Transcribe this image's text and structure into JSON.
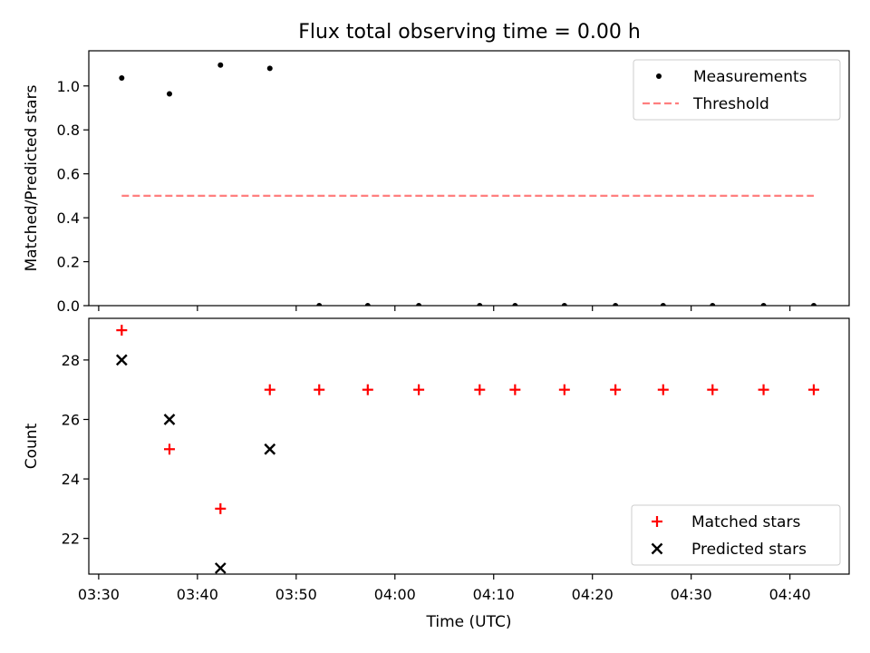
{
  "title": "Flux total observing time = 0.00 h",
  "chart_data": [
    {
      "type": "scatter",
      "ylabel": "Matched/Predicted stars",
      "xlim": [
        "03:29",
        "04:46"
      ],
      "ylim": [
        0,
        1.16
      ],
      "y_ticks": [
        0.0,
        0.2,
        0.4,
        0.6,
        0.8,
        1.0
      ],
      "y_tick_labels": [
        "0.0",
        "0.2",
        "0.4",
        "0.6",
        "0.8",
        "1.0"
      ],
      "legend_position": "top-right",
      "series": [
        {
          "name": "Measurements",
          "marker": "dot",
          "color": "#000000",
          "x": [
            "03:32:20",
            "03:37:10",
            "03:42:20",
            "03:47:20",
            "03:52:20",
            "03:57:15",
            "04:02:25",
            "04:08:35",
            "04:12:10",
            "04:17:10",
            "04:22:20",
            "04:27:10",
            "04:32:10",
            "04:37:20",
            "04:42:25"
          ],
          "y": [
            1.036,
            0.964,
            1.095,
            1.08,
            0,
            0,
            0,
            0,
            0,
            0,
            0,
            0,
            0,
            0,
            0
          ]
        },
        {
          "name": "Threshold",
          "style": "dashed-line",
          "color": "#ff7f7f",
          "x": [
            "03:32:20",
            "04:42:25"
          ],
          "y": [
            0.5,
            0.5
          ]
        }
      ]
    },
    {
      "type": "scatter",
      "xlabel": "Time (UTC)",
      "ylabel": "Count",
      "xlim": [
        "03:29",
        "04:46"
      ],
      "ylim": [
        20.8,
        29.4
      ],
      "x_ticks": [
        "03:30",
        "03:40",
        "03:50",
        "04:00",
        "04:10",
        "04:20",
        "04:30",
        "04:40"
      ],
      "y_ticks": [
        22,
        24,
        26,
        28
      ],
      "legend_position": "bottom-right",
      "series": [
        {
          "name": "Matched stars",
          "marker": "plus",
          "color": "#ff0000",
          "x": [
            "03:32:20",
            "03:37:10",
            "03:42:20",
            "03:47:20",
            "03:52:20",
            "03:57:15",
            "04:02:25",
            "04:08:35",
            "04:12:10",
            "04:17:10",
            "04:22:20",
            "04:27:10",
            "04:32:10",
            "04:37:20",
            "04:42:25"
          ],
          "y": [
            29,
            25,
            23,
            27,
            27,
            27,
            27,
            27,
            27,
            27,
            27,
            27,
            27,
            27,
            27
          ]
        },
        {
          "name": "Predicted stars",
          "marker": "x",
          "color": "#000000",
          "x": [
            "03:32:20",
            "03:37:10",
            "03:42:20",
            "03:47:20"
          ],
          "y": [
            28,
            26,
            21,
            25
          ]
        }
      ]
    }
  ]
}
